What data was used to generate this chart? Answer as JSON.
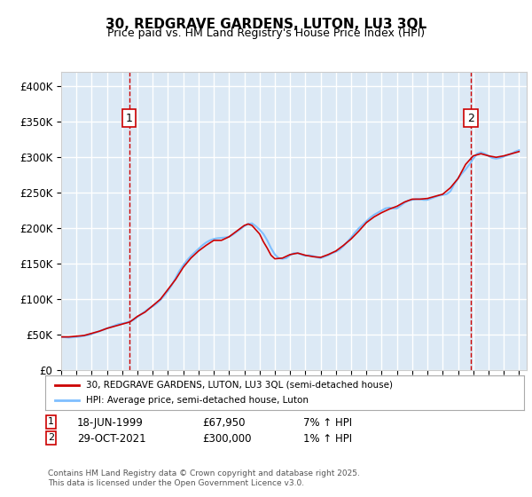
{
  "title": "30, REDGRAVE GARDENS, LUTON, LU3 3QL",
  "subtitle": "Price paid vs. HM Land Registry's House Price Index (HPI)",
  "ylabel_ticks": [
    "£0",
    "£50K",
    "£100K",
    "£150K",
    "£200K",
    "£250K",
    "£300K",
    "£350K",
    "£400K"
  ],
  "ytick_values": [
    0,
    50000,
    100000,
    150000,
    200000,
    250000,
    300000,
    350000,
    400000
  ],
  "ylim": [
    0,
    420000
  ],
  "xlim_start": 1995.0,
  "xlim_end": 2025.5,
  "background_color": "#dce9f5",
  "plot_bg": "#dce9f5",
  "grid_color": "#ffffff",
  "red_line_color": "#cc0000",
  "blue_line_color": "#7fbfff",
  "marker1_year": 1999.46,
  "marker1_price": 67950,
  "marker1_label": "1",
  "marker1_date": "18-JUN-1999",
  "marker1_hpi": "7% ↑ HPI",
  "marker2_year": 2021.83,
  "marker2_price": 300000,
  "marker2_label": "2",
  "marker2_date": "29-OCT-2021",
  "marker2_hpi": "1% ↑ HPI",
  "legend_label_red": "30, REDGRAVE GARDENS, LUTON, LU3 3QL (semi-detached house)",
  "legend_label_blue": "HPI: Average price, semi-detached house, Luton",
  "footer": "Contains HM Land Registry data © Crown copyright and database right 2025.\nThis data is licensed under the Open Government Licence v3.0.",
  "hpi_data": {
    "years": [
      1995.0,
      1995.25,
      1995.5,
      1995.75,
      1996.0,
      1996.25,
      1996.5,
      1996.75,
      1997.0,
      1997.25,
      1997.5,
      1997.75,
      1998.0,
      1998.25,
      1998.5,
      1998.75,
      1999.0,
      1999.25,
      1999.5,
      1999.75,
      2000.0,
      2000.25,
      2000.5,
      2000.75,
      2001.0,
      2001.25,
      2001.5,
      2001.75,
      2002.0,
      2002.25,
      2002.5,
      2002.75,
      2003.0,
      2003.25,
      2003.5,
      2003.75,
      2004.0,
      2004.25,
      2004.5,
      2004.75,
      2005.0,
      2005.25,
      2005.5,
      2005.75,
      2006.0,
      2006.25,
      2006.5,
      2006.75,
      2007.0,
      2007.25,
      2007.5,
      2007.75,
      2008.0,
      2008.25,
      2008.5,
      2008.75,
      2009.0,
      2009.25,
      2009.5,
      2009.75,
      2010.0,
      2010.25,
      2010.5,
      2010.75,
      2011.0,
      2011.25,
      2011.5,
      2011.75,
      2012.0,
      2012.25,
      2012.5,
      2012.75,
      2013.0,
      2013.25,
      2013.5,
      2013.75,
      2014.0,
      2014.25,
      2014.5,
      2014.75,
      2015.0,
      2015.25,
      2015.5,
      2015.75,
      2016.0,
      2016.25,
      2016.5,
      2016.75,
      2017.0,
      2017.25,
      2017.5,
      2017.75,
      2018.0,
      2018.25,
      2018.5,
      2018.75,
      2019.0,
      2019.25,
      2019.5,
      2019.75,
      2020.0,
      2020.25,
      2020.5,
      2020.75,
      2021.0,
      2021.25,
      2021.5,
      2021.75,
      2022.0,
      2022.25,
      2022.5,
      2022.75,
      2023.0,
      2023.25,
      2023.5,
      2023.75,
      2024.0,
      2024.25,
      2024.5,
      2024.75,
      2025.0
    ],
    "prices": [
      47000,
      46500,
      46000,
      46500,
      47000,
      47500,
      48500,
      49500,
      51000,
      53000,
      55000,
      57000,
      59000,
      61000,
      63000,
      65000,
      66000,
      67000,
      68500,
      71000,
      75000,
      79000,
      83000,
      87000,
      90000,
      94000,
      99000,
      105000,
      112000,
      120000,
      130000,
      140000,
      148000,
      155000,
      161000,
      166000,
      171000,
      176000,
      180000,
      183000,
      185000,
      186000,
      186500,
      187000,
      188000,
      191000,
      195000,
      199000,
      203000,
      206000,
      207000,
      203000,
      198000,
      192000,
      183000,
      172000,
      163000,
      158000,
      157000,
      158000,
      162000,
      165000,
      165000,
      163000,
      161000,
      162000,
      161000,
      159000,
      158000,
      160000,
      162000,
      165000,
      167000,
      170000,
      175000,
      181000,
      187000,
      194000,
      200000,
      205000,
      210000,
      215000,
      219000,
      222000,
      225000,
      228000,
      229000,
      228000,
      228000,
      232000,
      236000,
      239000,
      240000,
      241000,
      241000,
      240000,
      240000,
      242000,
      244000,
      246000,
      247000,
      248000,
      252000,
      262000,
      270000,
      277000,
      283000,
      290000,
      298000,
      305000,
      307000,
      305000,
      302000,
      299000,
      298000,
      299000,
      301000,
      303000,
      305000,
      308000,
      310000
    ]
  },
  "price_paid_data": {
    "years": [
      1995.0,
      1995.5,
      1996.0,
      1996.5,
      1997.0,
      1997.5,
      1998.0,
      1998.5,
      1999.0,
      1999.5,
      2000.0,
      2000.5,
      2001.0,
      2001.5,
      2002.0,
      2002.5,
      2003.0,
      2003.5,
      2004.0,
      2004.5,
      2005.0,
      2005.5,
      2006.0,
      2006.5,
      2007.0,
      2007.25,
      2007.5,
      2007.75,
      2008.0,
      2008.25,
      2008.5,
      2008.75,
      2009.0,
      2009.5,
      2010.0,
      2010.5,
      2011.0,
      2011.5,
      2012.0,
      2012.5,
      2013.0,
      2013.5,
      2014.0,
      2014.5,
      2015.0,
      2015.5,
      2016.0,
      2016.5,
      2017.0,
      2017.5,
      2018.0,
      2018.5,
      2019.0,
      2019.5,
      2020.0,
      2020.5,
      2021.0,
      2021.5,
      2022.0,
      2022.5,
      2023.0,
      2023.5,
      2024.0,
      2024.5,
      2025.0
    ],
    "prices": [
      47000,
      47000,
      48000,
      49000,
      52000,
      55000,
      59000,
      62000,
      65000,
      68000,
      76000,
      82000,
      91000,
      100000,
      114000,
      128000,
      145000,
      158000,
      168000,
      176000,
      183000,
      183000,
      188000,
      196000,
      204000,
      206000,
      204000,
      198000,
      192000,
      181000,
      172000,
      162000,
      157000,
      158000,
      163000,
      165000,
      162000,
      160000,
      159000,
      163000,
      168000,
      176000,
      185000,
      196000,
      208000,
      216000,
      222000,
      227000,
      231000,
      237000,
      241000,
      241000,
      242000,
      245000,
      248000,
      257000,
      270000,
      290000,
      302000,
      305000,
      302000,
      300000,
      302000,
      305000,
      308000
    ]
  }
}
